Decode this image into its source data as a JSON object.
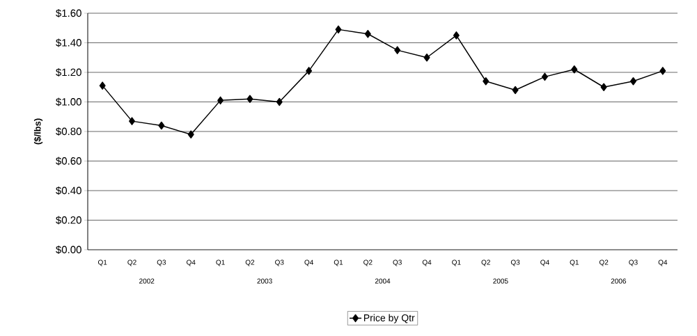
{
  "chart_data": {
    "type": "line",
    "ylabel": "($/lbs)",
    "categories": [
      "Q1",
      "Q2",
      "Q3",
      "Q4",
      "Q1",
      "Q2",
      "Q3",
      "Q4",
      "Q1",
      "Q2",
      "Q3",
      "Q4",
      "Q1",
      "Q2",
      "Q3",
      "Q4",
      "Q1",
      "Q2",
      "Q3",
      "Q4"
    ],
    "series": [
      {
        "name": "Price by Qtr",
        "color": "#000000",
        "values": [
          1.11,
          0.87,
          0.84,
          0.78,
          1.01,
          1.02,
          1.0,
          1.21,
          1.49,
          1.46,
          1.35,
          1.3,
          1.45,
          1.14,
          1.08,
          1.17,
          1.22,
          1.1,
          1.14,
          1.21
        ]
      }
    ],
    "ylim": [
      0,
      1.6
    ],
    "yticks": [
      {
        "value": 0,
        "label": "$0.00"
      },
      {
        "value": 0.2,
        "label": "$0.20"
      },
      {
        "value": 0.4,
        "label": "$0.40"
      },
      {
        "value": 0.6,
        "label": "$0.60"
      },
      {
        "value": 0.8,
        "label": "$0.80"
      },
      {
        "value": 1.0,
        "label": "$1.00"
      },
      {
        "value": 1.2,
        "label": "$1.20"
      },
      {
        "value": 1.4,
        "label": "$1.40"
      },
      {
        "value": 1.6,
        "label": "$1.60"
      }
    ],
    "annotations": [
      "2002",
      "2003",
      "2004",
      "2005",
      "2006"
    ],
    "grid": "y",
    "legend": "bottom",
    "marker": "diamond",
    "line_style": "solid"
  }
}
